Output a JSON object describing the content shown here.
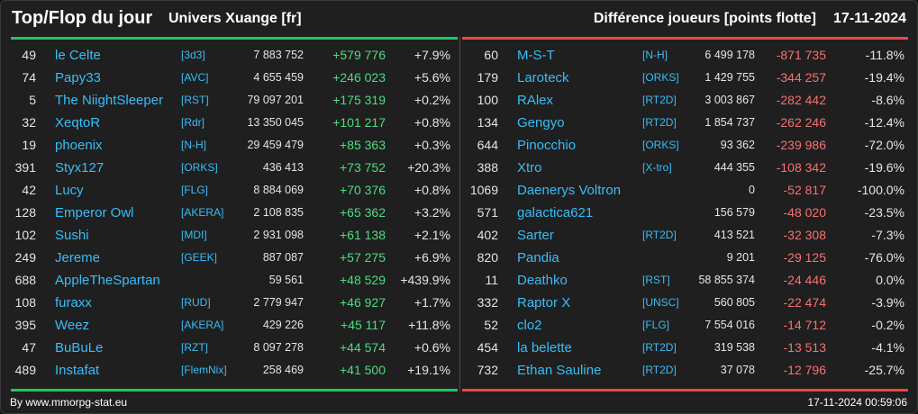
{
  "header": {
    "title": "Top/Flop du jour",
    "universe": "Univers Xuange [fr]",
    "description": "Différence joueurs [points flotte]",
    "date": "17-11-2024"
  },
  "colors": {
    "top_accent": "#22c55e",
    "flop_accent": "#ef4444",
    "name_color": "#38bdf8",
    "positive": "#4ade80",
    "negative": "#f87171",
    "background": "#1f1f1f"
  },
  "top": [
    {
      "rank": "49",
      "name": "le Celte",
      "guild": "[3d3]",
      "points": "7 883 752",
      "diff": "+579 776",
      "pct": "+7.9%"
    },
    {
      "rank": "74",
      "name": "Papy33",
      "guild": "[AVC]",
      "points": "4 655 459",
      "diff": "+246 023",
      "pct": "+5.6%"
    },
    {
      "rank": "5",
      "name": "The NiightSleeper",
      "guild": "[RST]",
      "points": "79 097 201",
      "diff": "+175 319",
      "pct": "+0.2%"
    },
    {
      "rank": "32",
      "name": "XeqtoR",
      "guild": "[Rdr]",
      "points": "13 350 045",
      "diff": "+101 217",
      "pct": "+0.8%"
    },
    {
      "rank": "19",
      "name": "phoenix",
      "guild": "[N-H]",
      "points": "29 459 479",
      "diff": "+85 363",
      "pct": "+0.3%"
    },
    {
      "rank": "391",
      "name": "Styx127",
      "guild": "[ORKS]",
      "points": "436 413",
      "diff": "+73 752",
      "pct": "+20.3%"
    },
    {
      "rank": "42",
      "name": "Lucy",
      "guild": "[FLG]",
      "points": "8 884 069",
      "diff": "+70 376",
      "pct": "+0.8%"
    },
    {
      "rank": "128",
      "name": "Emperor Owl",
      "guild": "[AKERA]",
      "points": "2 108 835",
      "diff": "+65 362",
      "pct": "+3.2%"
    },
    {
      "rank": "102",
      "name": "Sushi",
      "guild": "[MDI]",
      "points": "2 931 098",
      "diff": "+61 138",
      "pct": "+2.1%"
    },
    {
      "rank": "249",
      "name": "Jereme",
      "guild": "[GEEK]",
      "points": "887 087",
      "diff": "+57 275",
      "pct": "+6.9%"
    },
    {
      "rank": "688",
      "name": "AppleTheSpartan",
      "guild": "",
      "points": "59 561",
      "diff": "+48 529",
      "pct": "+439.9%"
    },
    {
      "rank": "108",
      "name": "furaxx",
      "guild": "[RUD]",
      "points": "2 779 947",
      "diff": "+46 927",
      "pct": "+1.7%"
    },
    {
      "rank": "395",
      "name": "Weez",
      "guild": "[AKERA]",
      "points": "429 226",
      "diff": "+45 117",
      "pct": "+11.8%"
    },
    {
      "rank": "47",
      "name": "BuBuLe",
      "guild": "[RZT]",
      "points": "8 097 278",
      "diff": "+44 574",
      "pct": "+0.6%"
    },
    {
      "rank": "489",
      "name": "Instafat",
      "guild": "[FlemNix]",
      "points": "258 469",
      "diff": "+41 500",
      "pct": "+19.1%"
    }
  ],
  "flop": [
    {
      "rank": "60",
      "name": "M-S-T",
      "guild": "[N-H]",
      "points": "6 499 178",
      "diff": "-871 735",
      "pct": "-11.8%"
    },
    {
      "rank": "179",
      "name": "Laroteck",
      "guild": "[ORKS]",
      "points": "1 429 755",
      "diff": "-344 257",
      "pct": "-19.4%"
    },
    {
      "rank": "100",
      "name": "RAlex",
      "guild": "[RT2D]",
      "points": "3 003 867",
      "diff": "-282 442",
      "pct": "-8.6%"
    },
    {
      "rank": "134",
      "name": "Gengyo",
      "guild": "[RT2D]",
      "points": "1 854 737",
      "diff": "-262 246",
      "pct": "-12.4%"
    },
    {
      "rank": "644",
      "name": "Pinocchio",
      "guild": "[ORKS]",
      "points": "93 362",
      "diff": "-239 986",
      "pct": "-72.0%"
    },
    {
      "rank": "388",
      "name": "Xtro",
      "guild": "[X-tro]",
      "points": "444 355",
      "diff": "-108 342",
      "pct": "-19.6%"
    },
    {
      "rank": "1069",
      "name": "Daenerys Voltron",
      "guild": "",
      "points": "0",
      "diff": "-52 817",
      "pct": "-100.0%"
    },
    {
      "rank": "571",
      "name": "galactica621",
      "guild": "",
      "points": "156 579",
      "diff": "-48 020",
      "pct": "-23.5%"
    },
    {
      "rank": "402",
      "name": "Sarter",
      "guild": "[RT2D]",
      "points": "413 521",
      "diff": "-32 308",
      "pct": "-7.3%"
    },
    {
      "rank": "820",
      "name": "Pandia",
      "guild": "",
      "points": "9 201",
      "diff": "-29 125",
      "pct": "-76.0%"
    },
    {
      "rank": "11",
      "name": "Deathko",
      "guild": "[RST]",
      "points": "58 855 374",
      "diff": "-24 446",
      "pct": "0.0%"
    },
    {
      "rank": "332",
      "name": "Raptor X",
      "guild": "[UNSC]",
      "points": "560 805",
      "diff": "-22 474",
      "pct": "-3.9%"
    },
    {
      "rank": "52",
      "name": "clo2",
      "guild": "[FLG]",
      "points": "7 554 016",
      "diff": "-14 712",
      "pct": "-0.2%"
    },
    {
      "rank": "454",
      "name": "la belette",
      "guild": "[RT2D]",
      "points": "319 538",
      "diff": "-13 513",
      "pct": "-4.1%"
    },
    {
      "rank": "732",
      "name": "Ethan Sauline",
      "guild": "[RT2D]",
      "points": "37 078",
      "diff": "-12 796",
      "pct": "-25.7%"
    }
  ],
  "footer": {
    "credit": "By www.mmorpg-stat.eu",
    "timestamp": "17-11-2024 00:59:06"
  }
}
